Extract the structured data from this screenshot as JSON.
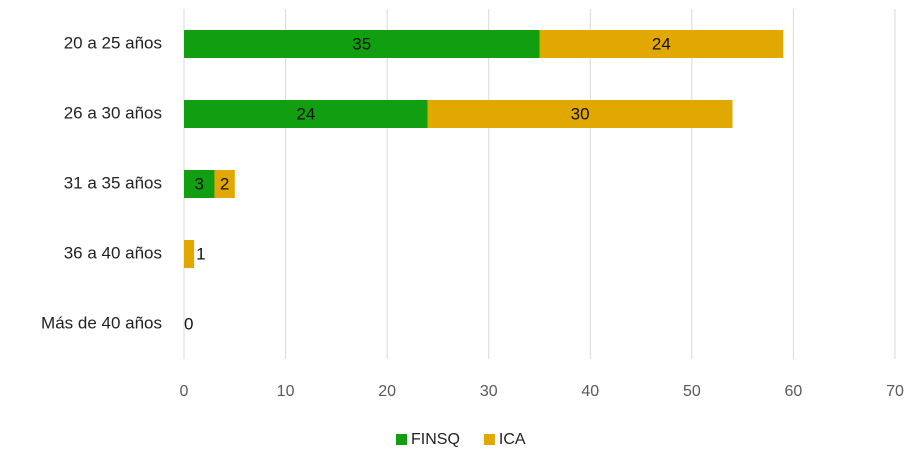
{
  "chart_data": {
    "type": "stacked-bar-horizontal",
    "categories": [
      "20 a 25 años",
      "26 a 30 años",
      "31 a 35 años",
      "36 a 40 años",
      "Más de 40 años"
    ],
    "series": [
      {
        "name": "FINSQ",
        "color": "#119e11",
        "values": [
          35,
          24,
          3,
          0,
          0
        ],
        "value_labels": [
          "35",
          "24",
          "3",
          null,
          null
        ]
      },
      {
        "name": "ICA",
        "color": "#e0a800",
        "values": [
          24,
          30,
          2,
          1,
          0
        ]
      }
    ],
    "xlim": [
      0,
      70
    ],
    "xticks": [
      0,
      10,
      20,
      30,
      40,
      50,
      60,
      70
    ],
    "grid": true,
    "legend": "bottom"
  }
}
